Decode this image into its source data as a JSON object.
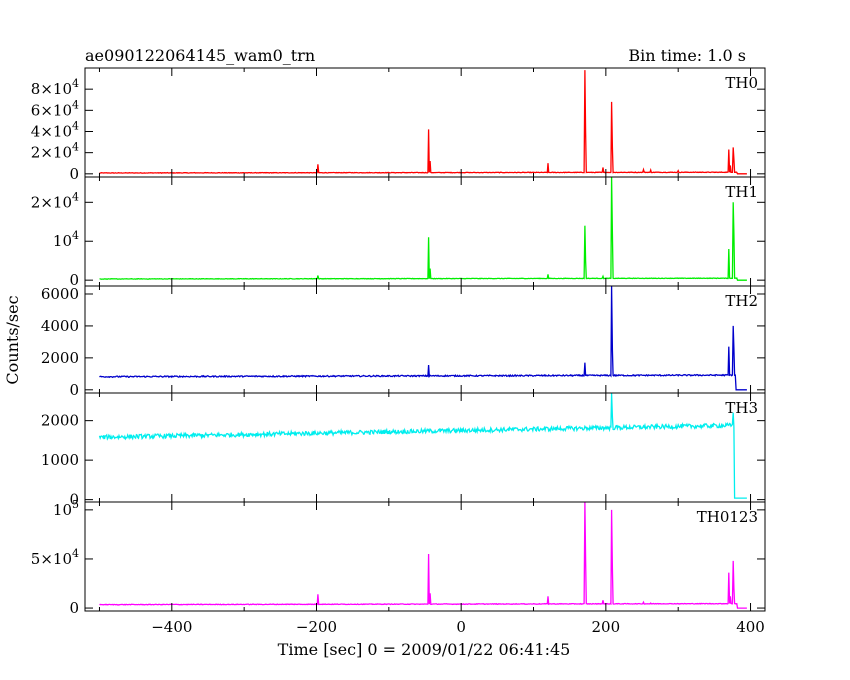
{
  "header": {
    "title": "ae090122064145_wam0_trn",
    "bin_time": "Bin time: 1.0 s"
  },
  "chart_data": {
    "type": "line",
    "xlabel": "Time [sec] 0 = 2009/01/22 06:41:45",
    "ylabel": "Counts/sec",
    "xlim": [
      -520,
      420
    ],
    "x_ticks": [
      {
        "value": -400,
        "label": "−400"
      },
      {
        "value": -200,
        "label": "−200"
      },
      {
        "value": 0,
        "label": "0"
      },
      {
        "value": 200,
        "label": "200"
      },
      {
        "value": 400,
        "label": "400"
      }
    ],
    "panels": [
      {
        "name": "TH0",
        "color": "#ff0000",
        "ylim": [
          -3000,
          100000
        ],
        "ticks": [
          {
            "value": 0,
            "label": "0"
          },
          {
            "value": 20000,
            "label": "2×10^4"
          },
          {
            "value": 40000,
            "label": "4×10^4"
          },
          {
            "value": 60000,
            "label": "6×10^4"
          },
          {
            "value": 80000,
            "label": "8×10^4"
          }
        ],
        "baseline_start": 800,
        "baseline_end": 1500,
        "noise": 250,
        "spikes": [
          [
            -198,
            9000
          ],
          [
            -45,
            42000
          ],
          [
            -43,
            12000
          ],
          [
            120,
            10000
          ],
          [
            171,
            98000
          ],
          [
            172,
            40000
          ],
          [
            196,
            6000
          ],
          [
            208,
            68000
          ],
          [
            209,
            25000
          ],
          [
            252,
            4000
          ],
          [
            262,
            3500
          ],
          [
            300,
            3000
          ],
          [
            370,
            23000
          ],
          [
            372,
            8000
          ],
          [
            376,
            25000
          ],
          [
            377,
            14000
          ]
        ],
        "end_drop": 382,
        "end_value": 0
      },
      {
        "name": "TH1",
        "color": "#00ee00",
        "ylim": [
          -1500,
          26500
        ],
        "ticks": [
          {
            "value": 0,
            "label": "0"
          },
          {
            "value": 10000,
            "label": "10^4"
          },
          {
            "value": 20000,
            "label": "2×10^4"
          }
        ],
        "baseline_start": 300,
        "baseline_end": 500,
        "noise": 60,
        "spikes": [
          [
            -198,
            1200
          ],
          [
            -45,
            11000
          ],
          [
            -43,
            3000
          ],
          [
            120,
            1500
          ],
          [
            171,
            14000
          ],
          [
            172,
            5000
          ],
          [
            196,
            1000
          ],
          [
            208,
            26500
          ],
          [
            209,
            12000
          ],
          [
            370,
            8000
          ],
          [
            376,
            20000
          ],
          [
            377,
            12000
          ]
        ],
        "end_drop": 382,
        "end_value": 0
      },
      {
        "name": "TH2",
        "color": "#0000cc",
        "ylim": [
          -200,
          6500
        ],
        "ticks": [
          {
            "value": 0,
            "label": "0"
          },
          {
            "value": 2000,
            "label": "2000"
          },
          {
            "value": 4000,
            "label": "4000"
          },
          {
            "value": 6000,
            "label": "6000"
          }
        ],
        "baseline_start": 820,
        "baseline_end": 920,
        "noise": 40,
        "spikes": [
          [
            -45,
            1550
          ],
          [
            171,
            1700
          ],
          [
            208,
            6500
          ],
          [
            209,
            2500
          ],
          [
            370,
            2700
          ],
          [
            376,
            4000
          ],
          [
            377,
            2600
          ]
        ],
        "end_drop": 380,
        "end_value": 0
      },
      {
        "name": "TH3",
        "color": "#00eeee",
        "ylim": [
          -60,
          2700
        ],
        "ticks": [
          {
            "value": 0,
            "label": "0"
          },
          {
            "value": 1000,
            "label": "1000"
          },
          {
            "value": 2000,
            "label": "2000"
          }
        ],
        "baseline_start": 1580,
        "baseline_end": 1880,
        "noise": 55,
        "spikes": [
          [
            208,
            2700
          ],
          [
            209,
            2100
          ],
          [
            376,
            2200
          ]
        ],
        "end_drop": 378,
        "end_value": 40
      },
      {
        "name": "TH0123",
        "color": "#ff00ff",
        "ylim": [
          -3000,
          108000
        ],
        "ticks": [
          {
            "value": 0,
            "label": "0"
          },
          {
            "value": 50000,
            "label": "5×10^4"
          },
          {
            "value": 100000,
            "label": "10^5"
          }
        ],
        "baseline_start": 3500,
        "baseline_end": 4500,
        "noise": 300,
        "spikes": [
          [
            -198,
            14000
          ],
          [
            -45,
            55000
          ],
          [
            -43,
            15000
          ],
          [
            120,
            12000
          ],
          [
            171,
            108000
          ],
          [
            172,
            50000
          ],
          [
            196,
            8000
          ],
          [
            208,
            100000
          ],
          [
            209,
            40000
          ],
          [
            252,
            6000
          ],
          [
            262,
            5000
          ],
          [
            370,
            36000
          ],
          [
            372,
            12000
          ],
          [
            376,
            48000
          ],
          [
            377,
            20000
          ]
        ],
        "end_drop": 382,
        "end_value": 0
      }
    ]
  }
}
